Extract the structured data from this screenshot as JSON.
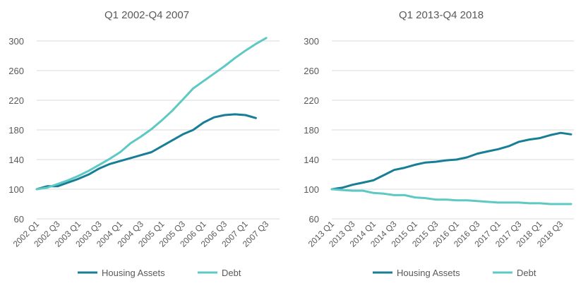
{
  "colors": {
    "housing": "#177e95",
    "debt": "#5ec9c4",
    "grid": "#d9d9d9",
    "text": "#595959"
  },
  "chart_data": [
    {
      "type": "line",
      "title": "Q1 2002-Q4 2007",
      "ylim": [
        60,
        300
      ],
      "yticks": [
        60,
        100,
        140,
        180,
        220,
        260,
        300
      ],
      "categories": [
        "2002 Q1",
        "2002 Q2",
        "2002 Q3",
        "2002 Q4",
        "2003 Q1",
        "2003 Q2",
        "2003 Q3",
        "2003 Q4",
        "2004 Q1",
        "2004 Q2",
        "2004 Q3",
        "2004 Q4",
        "2005 Q1",
        "2005 Q2",
        "2005 Q3",
        "2005 Q4",
        "2006 Q1",
        "2006 Q2",
        "2006 Q3",
        "2006 Q4",
        "2007 Q1",
        "2007 Q2",
        "2007 Q3",
        "2007 Q4"
      ],
      "tick_labels": [
        "2002 Q1",
        "2002 Q3",
        "2003 Q1",
        "2003 Q3",
        "2004 Q1",
        "2004 Q3",
        "2005 Q1",
        "2005 Q3",
        "2006 Q1",
        "2006 Q3",
        "2007 Q1",
        "2007 Q3"
      ],
      "grid": true,
      "legend": "bottom",
      "series": [
        {
          "name": "Housing Assets",
          "values": [
            100,
            104,
            104,
            109,
            114,
            120,
            128,
            134,
            138,
            142,
            146,
            150,
            158,
            166,
            174,
            180,
            190,
            197,
            200,
            201,
            200,
            196,
            null,
            null
          ]
        },
        {
          "name": "Debt",
          "values": [
            100,
            102,
            107,
            112,
            118,
            125,
            133,
            141,
            150,
            162,
            171,
            181,
            193,
            206,
            221,
            236,
            246,
            256,
            266,
            277,
            287,
            296,
            304,
            null
          ]
        }
      ]
    },
    {
      "type": "line",
      "title": "Q1 2013-Q4 2018",
      "ylim": [
        60,
        300
      ],
      "yticks": [
        60,
        100,
        140,
        180,
        220,
        260,
        300
      ],
      "categories": [
        "2013 Q1",
        "2013 Q2",
        "2013 Q3",
        "2013 Q4",
        "2014 Q1",
        "2014 Q2",
        "2014 Q3",
        "2014 Q4",
        "2015 Q1",
        "2015 Q2",
        "2015 Q3",
        "2015 Q4",
        "2016 Q1",
        "2016 Q2",
        "2016 Q3",
        "2016 Q4",
        "2017 Q1",
        "2017 Q2",
        "2017 Q3",
        "2017 Q4",
        "2018 Q1",
        "2018 Q2",
        "2018 Q3",
        "2018 Q4"
      ],
      "tick_labels": [
        "2013 Q1",
        "2013 Q3",
        "2014 Q1",
        "2014 Q3",
        "2015 Q1",
        "2015 Q3",
        "2016 Q1",
        "2016 Q3",
        "2017 Q1",
        "2017 Q3",
        "2018 Q1",
        "2018 Q3"
      ],
      "grid": true,
      "legend": "bottom",
      "series": [
        {
          "name": "Housing Assets",
          "values": [
            100,
            102,
            106,
            109,
            112,
            119,
            126,
            129,
            133,
            136,
            137,
            139,
            140,
            143,
            148,
            151,
            154,
            158,
            164,
            167,
            169,
            173,
            176,
            174
          ]
        },
        {
          "name": "Debt",
          "values": [
            100,
            99,
            98,
            98,
            95,
            94,
            92,
            92,
            89,
            88,
            86,
            86,
            85,
            85,
            84,
            83,
            82,
            82,
            82,
            81,
            81,
            80,
            80,
            80
          ]
        }
      ]
    }
  ]
}
